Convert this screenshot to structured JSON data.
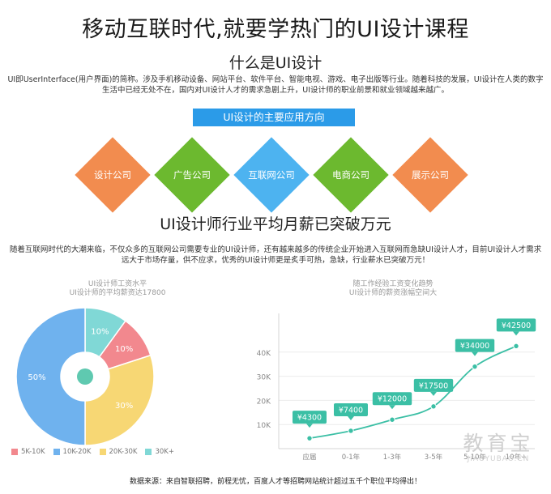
{
  "title": "移动互联时代,就要学热门的UI设计课程",
  "subtitle": "什么是UI设计",
  "intro_text": "UI即UserInterface(用户界面)的简称。涉及手机移动设备、网站平台、软件平台、智能电视、游戏、电子出版等行业。随着科技的发展，UI设计在人类的数字生活中已经无处不在，国内对UI设计人才的需求急剧上升，UI设计师的职业前景和就业领域越来越广。",
  "direction_label": "UI设计的主要应用方向",
  "diamonds": [
    {
      "label": "设计公司",
      "color": "#f28c4f"
    },
    {
      "label": "广告公司",
      "color": "#6cb92f"
    },
    {
      "label": "互联网公司",
      "color": "#4db3f0"
    },
    {
      "label": "电商公司",
      "color": "#6cb92f"
    },
    {
      "label": "展示公司",
      "color": "#f28c4f"
    }
  ],
  "salary_title": "UI设计师行业平均月薪已突破万元",
  "salary_text": "随着互联网时代的大潮来临，不仅众多的互联网公司需要专业的UI设计师，还有越来越多的传统企业开始进入互联网而急缺UI设计人才，目前UI设计人才需求远大于市场存量，供不应求，优秀的UI设计师更是炙手可热，急缺，行业薪水已突破万元！",
  "pie_caption": [
    "UI设计师工资水平",
    "UI设计师的平均薪资达17800"
  ],
  "line_caption": [
    "随工作经验工资变化趋势",
    "UI设计师的薪资涨幅空间大"
  ],
  "legend": [
    {
      "label": "5K-10K",
      "color": "#f2888e"
    },
    {
      "label": "10K-20K",
      "color": "#6fb2ee"
    },
    {
      "label": "20K-30K",
      "color": "#f7d774"
    },
    {
      "label": "30K+",
      "color": "#80d8d6"
    }
  ],
  "footer": "数据来源：来自智联招聘，前程无忧，百度人才等招聘网站统计超过五千个职位平均得出！",
  "watermark": {
    "big": "教育宝",
    "small": "JIAOYUBAO.CN"
  },
  "chart_data": [
    {
      "type": "pie",
      "title": "UI设计师工资水平",
      "subtitle": "UI设计师的平均薪资达17800",
      "labels": [
        "5K-10K",
        "10K-20K",
        "20K-30K",
        "30K+"
      ],
      "values": [
        10,
        50,
        30,
        10
      ],
      "slice_labels": [
        "10%",
        "50%",
        "30%",
        "10%"
      ],
      "colors": [
        "#f2888e",
        "#6fb2ee",
        "#f7d774",
        "#80d8d6"
      ],
      "legend_position": "bottom"
    },
    {
      "type": "line",
      "title": "随工作经验工资变化趋势",
      "subtitle": "UI设计师的薪资涨幅空间大",
      "categories": [
        "应届",
        "0-1年",
        "1-3年",
        "3-5年",
        "5-10年",
        "10年+"
      ],
      "values": [
        4300,
        7400,
        12000,
        17500,
        34000,
        42500
      ],
      "data_labels": [
        "¥4300",
        "¥7400",
        "¥12000",
        "¥17500",
        "¥34000",
        "¥42500"
      ],
      "y_ticks": [
        "10K",
        "20K",
        "30K",
        "40K"
      ],
      "ylim": [
        0,
        50000
      ],
      "grid": true,
      "color": "#3bbfa5"
    }
  ]
}
